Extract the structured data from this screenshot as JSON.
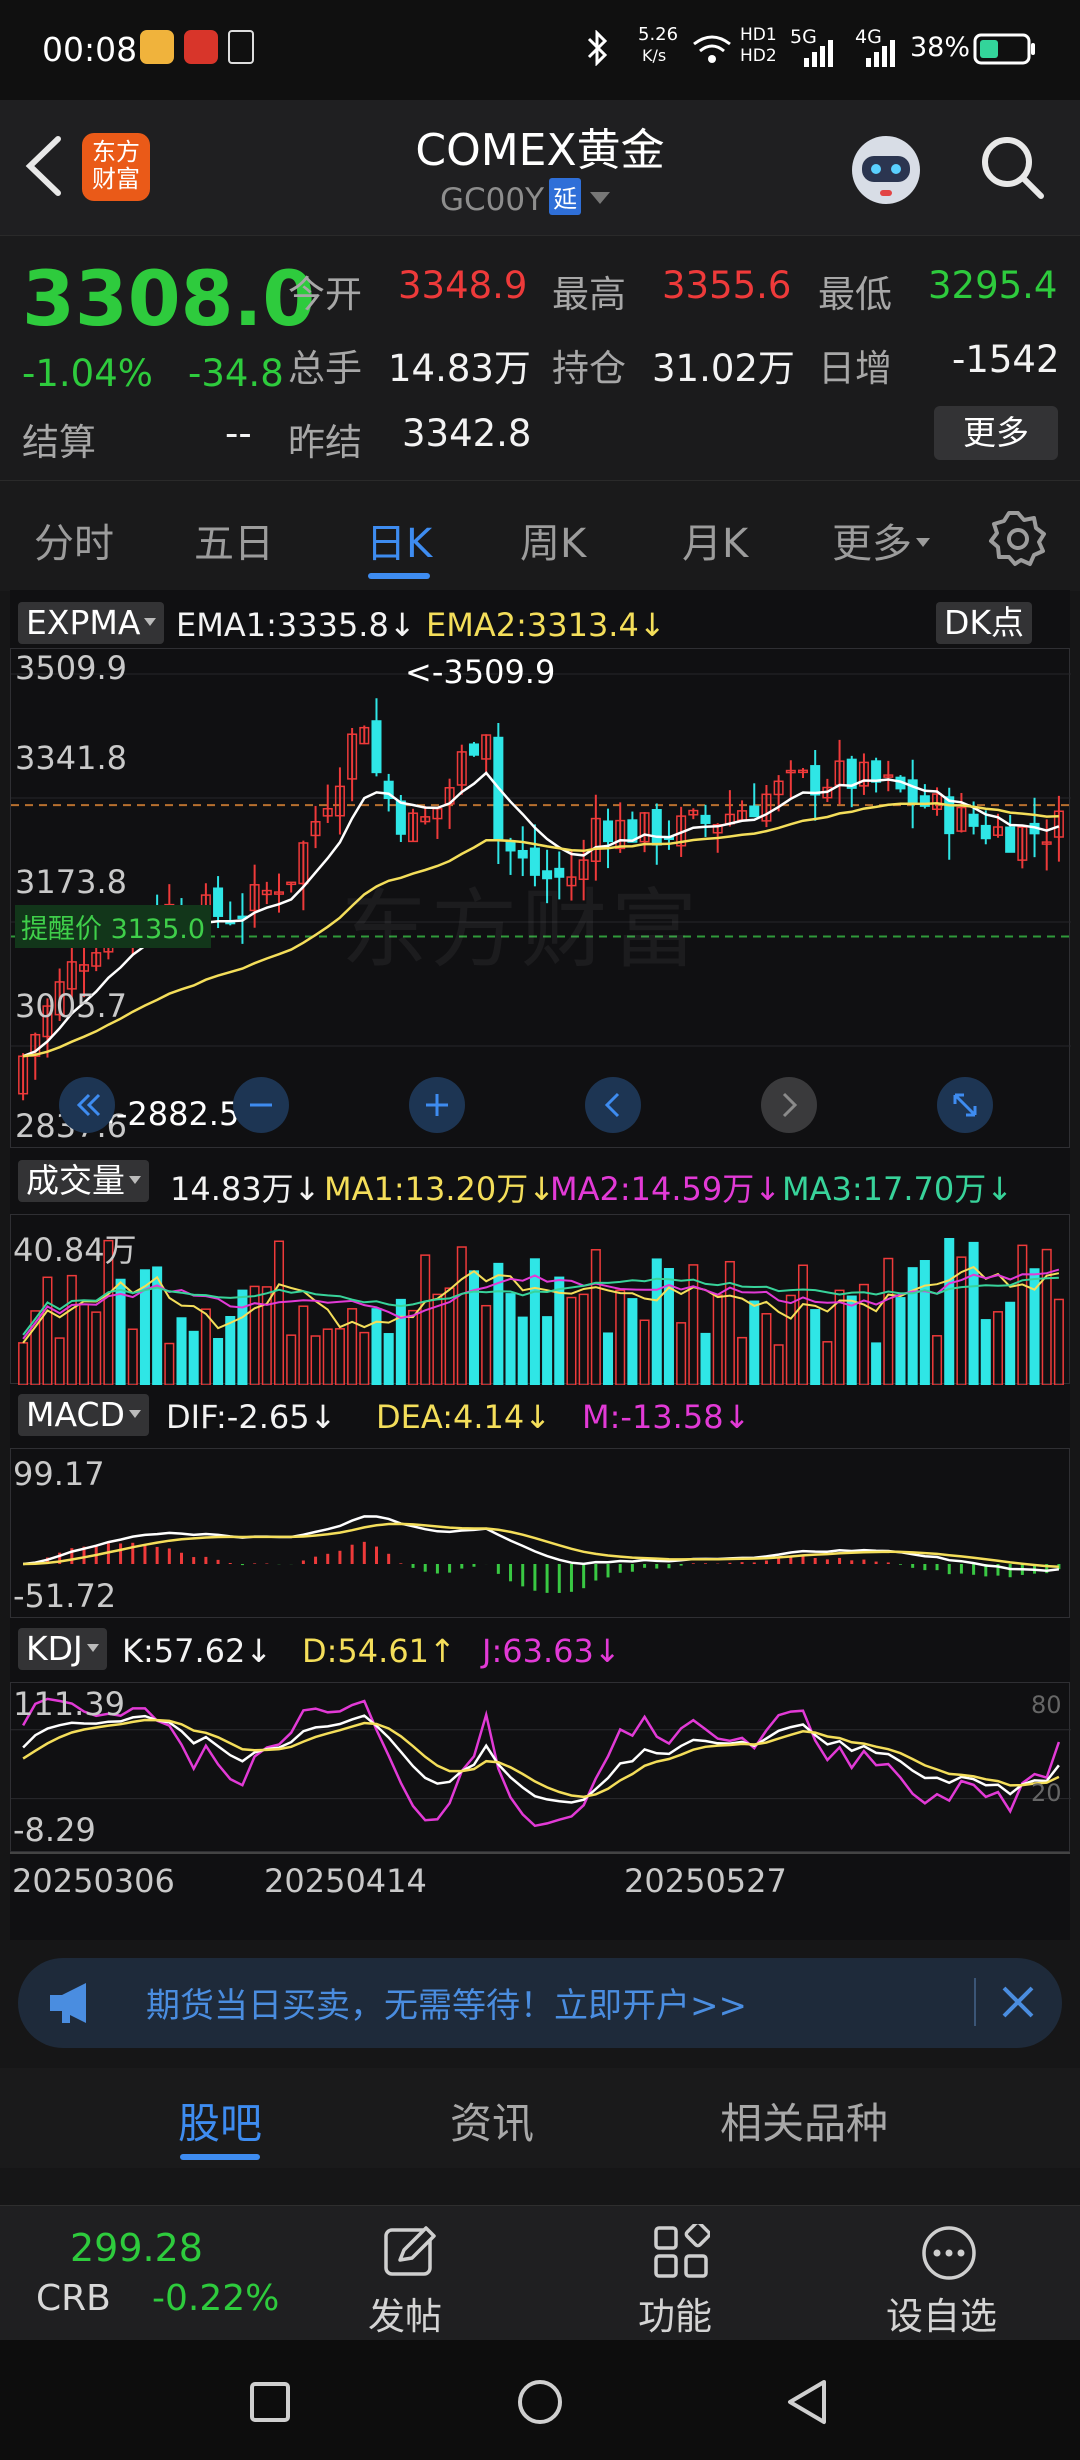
{
  "status": {
    "time": "00:08",
    "net_speed_top": "5.26",
    "net_speed_bottom": "K/s",
    "hd1": "HD1",
    "hd2": "HD2",
    "gen_5g": "5G",
    "gen_4g": "4G",
    "battery": "38%"
  },
  "header": {
    "logo_line1": "东方",
    "logo_line2": "财富",
    "title": "COMEX黄金",
    "subtitle_code": "GC00Y",
    "subtitle_badge": "延"
  },
  "quote": {
    "price": "3308.0",
    "change_pct": "-1.04%",
    "change": "-34.8",
    "settle_label": "结算",
    "settle_value": "--",
    "open_label": "今开",
    "open_value": "3348.9",
    "high_label": "最高",
    "high_value": "3355.6",
    "low_label": "最低",
    "low_value": "3295.4",
    "volume_label": "总手",
    "volume_value": "14.83万",
    "oi_label": "持仓",
    "oi_value": "31.02万",
    "daily_inc_label": "日增",
    "daily_inc_value": "-1542",
    "prev_settle_label": "昨结",
    "prev_settle_value": "3342.8",
    "more_label": "更多"
  },
  "tabs": {
    "items": [
      "分时",
      "五日",
      "日K",
      "周K",
      "月K",
      "更多"
    ],
    "active": "日K"
  },
  "main_panel": {
    "selector": "EXPMA",
    "ema1": "EMA1:3335.8",
    "ema2": "EMA2:3313.4",
    "dk_label": "DK点",
    "y_labels": [
      "3509.9",
      "3341.8",
      "3173.8",
      "3005.7",
      "2837.6"
    ],
    "max_annotation": "<-3509.9",
    "min_annotation": "<-2882.5",
    "alert_label": "提醒价 3135.0",
    "watermark": "东方财富"
  },
  "volume_panel": {
    "selector": "成交量",
    "volume": "14.83万",
    "ma1": "MA1:13.20万",
    "ma2": "MA2:14.59万",
    "ma3": "MA3:17.70万",
    "y_label": "40.84万"
  },
  "macd_panel": {
    "selector": "MACD",
    "dif": "DIF:-2.65",
    "dea": "DEA:4.14",
    "m": "M:-13.58",
    "y_top": "99.17",
    "y_bottom": "-51.72"
  },
  "kdj_panel": {
    "selector": "KDJ",
    "k": "K:57.62",
    "d": "D:54.61",
    "j": "J:63.63",
    "y_top": "111.39",
    "y_bottom": "-8.29",
    "right_top": "80",
    "right_bottom": "20"
  },
  "x_axis": {
    "dates": [
      "20250306",
      "20250414",
      "20250527"
    ]
  },
  "ad_banner": {
    "text": "期货当日买卖，无需等待！立即开户>>"
  },
  "news_tabs": {
    "items": [
      "股吧",
      "资讯",
      "相关品种"
    ],
    "active": "股吧"
  },
  "toolbar": {
    "crb_value": "299.28",
    "crb_label": "CRB",
    "crb_change": "-0.22%",
    "post_label": "发帖",
    "function_label": "功能",
    "watchlist_label": "设自选"
  },
  "colors": {
    "up": "#ee3a3a",
    "down": "#2fe6e6",
    "accent": "#3e8cf0",
    "ema1": "#ffffff",
    "ema2": "#f4de5a"
  },
  "icons": [
    "back-icon",
    "robot-avatar-icon",
    "search-icon",
    "settings-icon",
    "megaphone-icon",
    "close-icon",
    "edit-icon",
    "grid-icon",
    "more-circle-icon",
    "nav-square-icon",
    "nav-circle-icon",
    "nav-back-icon"
  ]
}
